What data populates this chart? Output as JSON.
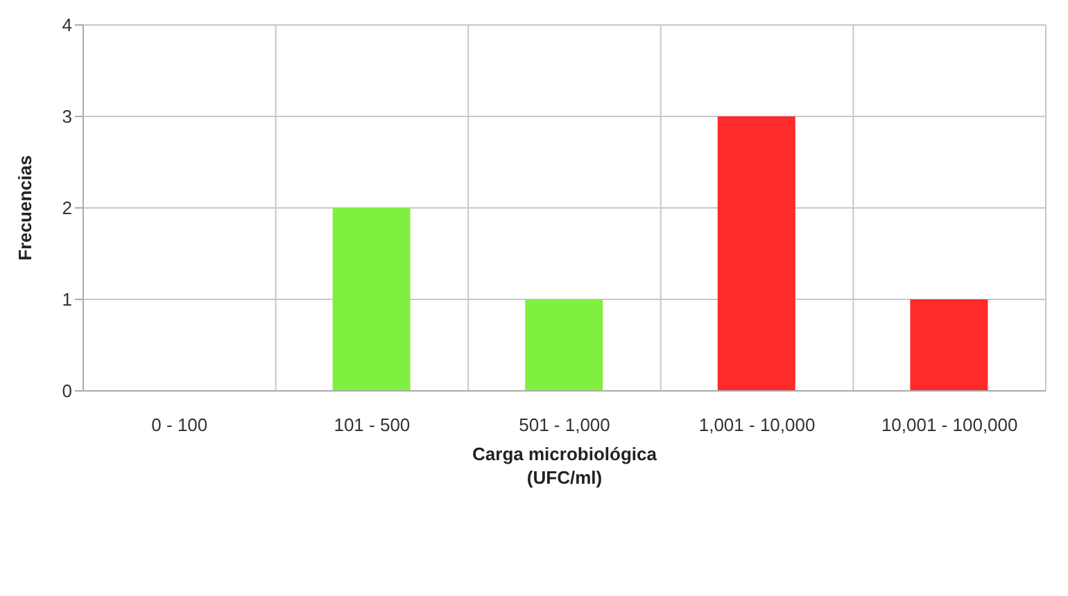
{
  "chart_data": {
    "type": "bar",
    "xlabel": "Carga microbiológica\n(UFC/ml)",
    "ylabel": "Frecuencias",
    "categories": [
      "0 - 100",
      "101 - 500",
      "501 - 1,000",
      "1,001 - 10,000",
      "10,001 - 100,000"
    ],
    "values": [
      0,
      2,
      1,
      3,
      1
    ],
    "colors": [
      "#80f040",
      "#80f040",
      "#80f040",
      "#ff2a2a",
      "#ff2a2a"
    ],
    "ylim": [
      0,
      4
    ],
    "yticks": [
      0,
      1,
      2,
      3,
      4
    ],
    "grid": true
  }
}
